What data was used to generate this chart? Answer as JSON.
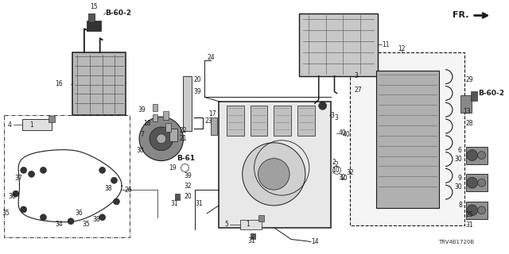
{
  "bg_color": "#ffffff",
  "line_color": "#1a1a1a",
  "fig_width": 6.4,
  "fig_height": 3.2,
  "dpi": 100,
  "diagram_code": "TRV4B1720B",
  "font_size": 5.5,
  "bold_font_size": 6.5,
  "title_font_size": 7.5,
  "fr_label": "FR.",
  "b602_label": "B-60-2",
  "b61_label": "B-61"
}
